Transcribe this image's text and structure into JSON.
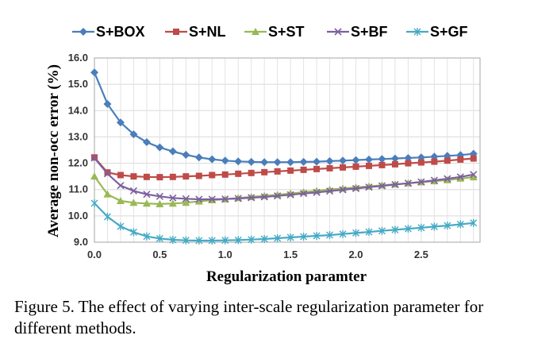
{
  "caption": "Figure 5. The effect of varying inter-scale regularization parameter for different methods.",
  "chart_data": {
    "type": "line",
    "title": "",
    "xlabel": "Regularization paramter",
    "ylabel": "Average non-occ error (%)",
    "xlim": [
      0,
      2.95
    ],
    "ylim": [
      9.0,
      16.0
    ],
    "x_ticks": [
      "0.0",
      "0.5",
      "1.0",
      "1.5",
      "2.0",
      "2.5"
    ],
    "y_ticks": [
      "9.0",
      "10.0",
      "11.0",
      "12.0",
      "13.0",
      "14.0",
      "15.0",
      "16.0"
    ],
    "grid": true,
    "legend_position": "top",
    "x": [
      0.0,
      0.1,
      0.2,
      0.3,
      0.4,
      0.5,
      0.6,
      0.7,
      0.8,
      0.9,
      1.0,
      1.1,
      1.2,
      1.3,
      1.4,
      1.5,
      1.6,
      1.7,
      1.8,
      1.9,
      2.0,
      2.1,
      2.2,
      2.3,
      2.4,
      2.5,
      2.6,
      2.7,
      2.8,
      2.9
    ],
    "series": [
      {
        "name": "S+BOX",
        "color": "#4a7ebb",
        "marker": "diamond",
        "values": [
          15.45,
          14.25,
          13.55,
          13.1,
          12.8,
          12.6,
          12.45,
          12.32,
          12.22,
          12.15,
          12.1,
          12.07,
          12.05,
          12.04,
          12.04,
          12.04,
          12.05,
          12.06,
          12.08,
          12.1,
          12.12,
          12.14,
          12.16,
          12.18,
          12.2,
          12.22,
          12.25,
          12.28,
          12.31,
          12.36
        ]
      },
      {
        "name": "S+NL",
        "color": "#be4b48",
        "marker": "square",
        "values": [
          12.22,
          11.65,
          11.55,
          11.5,
          11.48,
          11.47,
          11.48,
          11.5,
          11.52,
          11.55,
          11.57,
          11.6,
          11.63,
          11.66,
          11.69,
          11.72,
          11.75,
          11.78,
          11.81,
          11.84,
          11.87,
          11.9,
          11.93,
          11.96,
          12.0,
          12.03,
          12.06,
          12.1,
          12.14,
          12.18
        ]
      },
      {
        "name": "S+ST",
        "color": "#98b954",
        "marker": "triangle",
        "values": [
          11.5,
          10.82,
          10.57,
          10.5,
          10.47,
          10.45,
          10.47,
          10.5,
          10.55,
          10.6,
          10.63,
          10.68,
          10.72,
          10.76,
          10.8,
          10.85,
          10.9,
          10.95,
          11.0,
          11.04,
          11.08,
          11.12,
          11.16,
          11.2,
          11.24,
          11.28,
          11.32,
          11.36,
          11.42,
          11.47
        ]
      },
      {
        "name": "S+BF",
        "color": "#7d60a0",
        "marker": "x",
        "values": [
          12.2,
          11.6,
          11.15,
          10.95,
          10.82,
          10.74,
          10.68,
          10.65,
          10.63,
          10.63,
          10.64,
          10.66,
          10.69,
          10.72,
          10.76,
          10.8,
          10.85,
          10.89,
          10.94,
          10.99,
          11.04,
          11.09,
          11.14,
          11.19,
          11.24,
          11.29,
          11.35,
          11.41,
          11.48,
          11.57
        ]
      },
      {
        "name": "S+GF",
        "color": "#46aac5",
        "marker": "asterisk",
        "values": [
          10.48,
          9.97,
          9.6,
          9.38,
          9.22,
          9.14,
          9.09,
          9.07,
          9.06,
          9.06,
          9.07,
          9.08,
          9.1,
          9.12,
          9.15,
          9.18,
          9.21,
          9.24,
          9.27,
          9.31,
          9.35,
          9.39,
          9.43,
          9.47,
          9.51,
          9.55,
          9.59,
          9.63,
          9.68,
          9.73
        ]
      }
    ]
  }
}
